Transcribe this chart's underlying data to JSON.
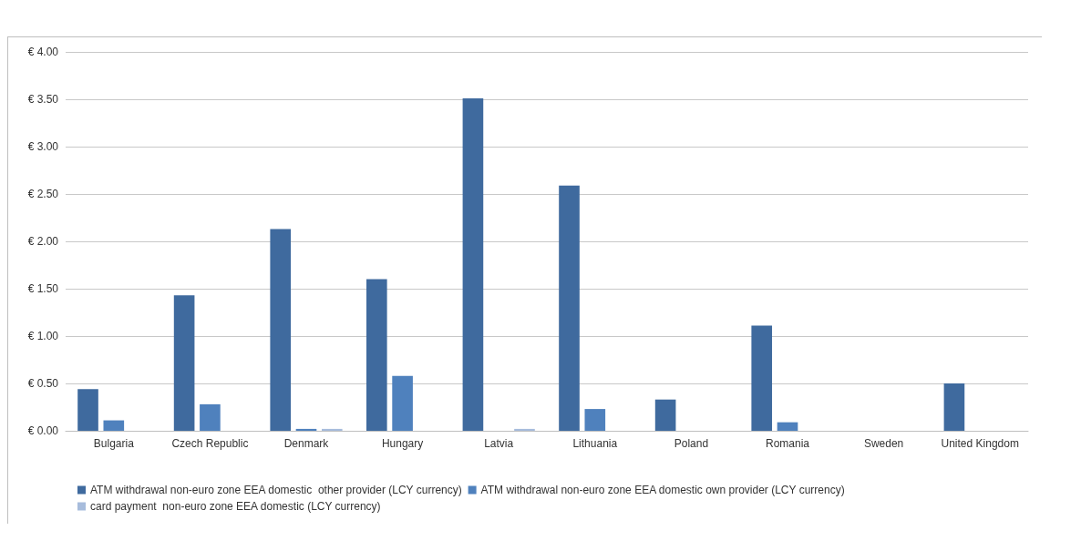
{
  "chart_data": {
    "type": "bar",
    "categories": [
      "Bulgaria",
      "Czech Republic",
      "Denmark",
      "Hungary",
      "Latvia",
      "Lithuania",
      "Poland",
      "Romania",
      "Sweden",
      "United Kingdom"
    ],
    "series": [
      {
        "name": "ATM withdrawal non-euro zone EEA domestic  other provider (LCY currency)",
        "color": "#3f6a9e",
        "values": [
          0.44,
          1.43,
          2.13,
          1.6,
          3.51,
          2.59,
          0.33,
          1.11,
          null,
          0.5
        ]
      },
      {
        "name": "ATM withdrawal non-euro zone EEA domestic own provider (LCY currency)",
        "color": "#4f81bd",
        "values": [
          0.11,
          0.28,
          0.02,
          0.58,
          null,
          0.23,
          null,
          0.09,
          null,
          null
        ]
      },
      {
        "name": "card payment  non-euro zone EEA domestic (LCY currency)",
        "color": "#a7bcdc",
        "values": [
          null,
          null,
          0.02,
          null,
          0.02,
          null,
          null,
          null,
          null,
          null
        ]
      }
    ],
    "ylim": [
      0,
      4
    ],
    "yticks": [
      {
        "value": 0,
        "label": "€ 0.00"
      },
      {
        "value": 0.5,
        "label": "€ 0.50"
      },
      {
        "value": 1,
        "label": "€ 1.00"
      },
      {
        "value": 1.5,
        "label": "€ 1.50"
      },
      {
        "value": 2,
        "label": "€ 2.00"
      },
      {
        "value": 2.5,
        "label": "€ 2.50"
      },
      {
        "value": 3,
        "label": "€ 3.00"
      },
      {
        "value": 3.5,
        "label": "€ 3.50"
      },
      {
        "value": 4,
        "label": "€ 4.00"
      }
    ],
    "grid": "y",
    "legend": "bottom"
  }
}
